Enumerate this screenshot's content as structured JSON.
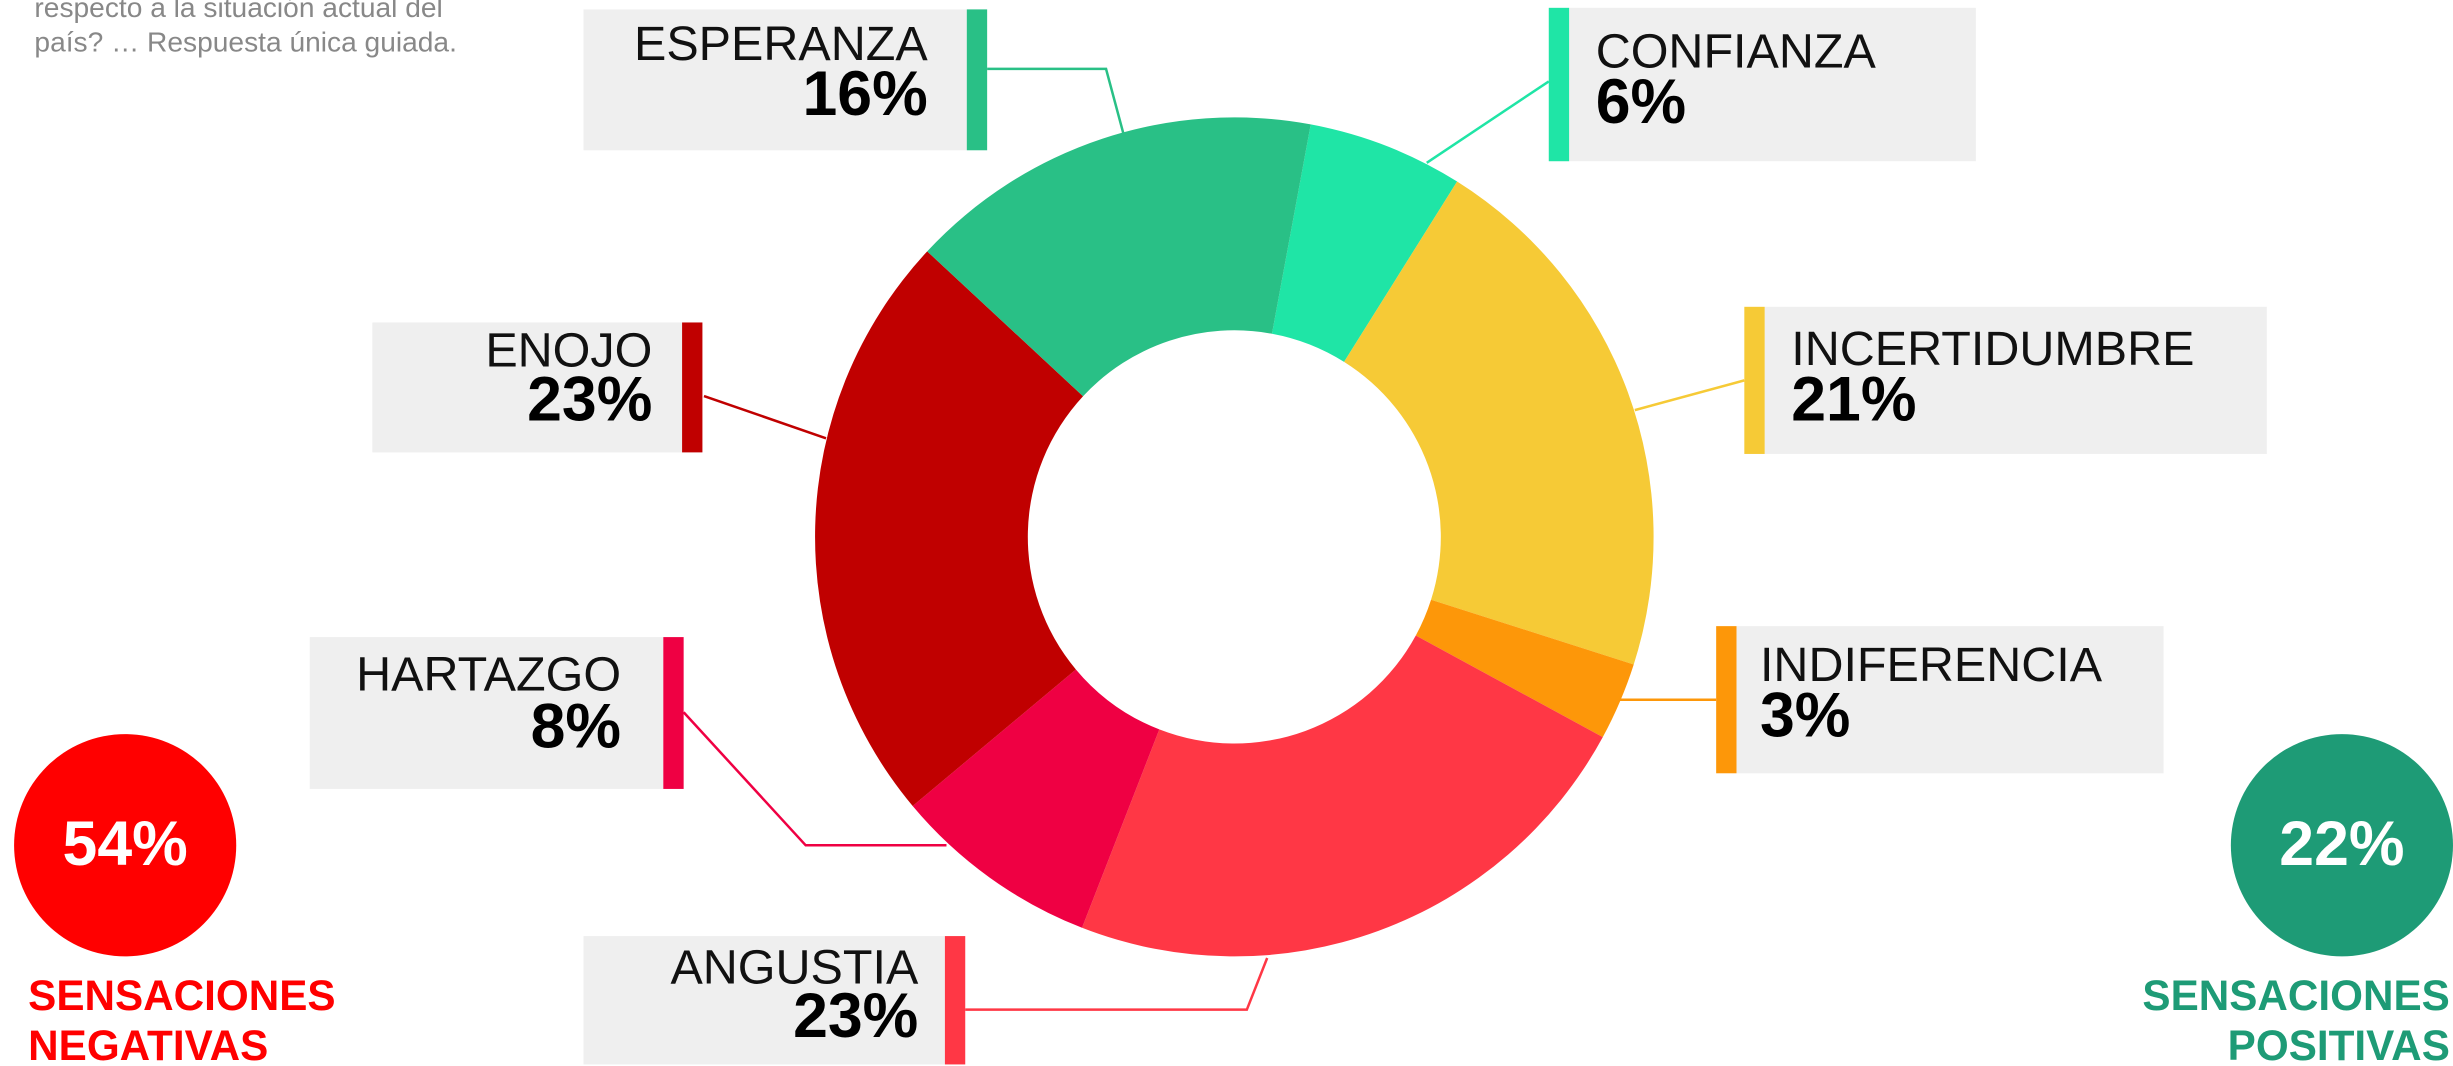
{
  "chart_data": {
    "type": "donut",
    "subtitle_lines": [
      "respecto a la situación actual del",
      "país? … Respuesta única guiada."
    ],
    "categories": [
      "CONFIANZA",
      "INCERTIDUMBRE",
      "INDIFERENCIA",
      "ANGUSTIA",
      "HARTAZGO",
      "ENOJO",
      "ESPERANZA"
    ],
    "values": [
      6,
      21,
      3,
      23,
      8,
      23,
      16
    ],
    "value_labels": [
      "6%",
      "21%",
      "3%",
      "23%",
      "8%",
      "23%",
      "16%"
    ],
    "colors": [
      "#1fe5a6",
      "#f6ca36",
      "#fd9709",
      "#ff3745",
      "#ef0043",
      "#c00000",
      "#29c086"
    ],
    "summaries": [
      {
        "value": 54,
        "value_label": "54%",
        "name_lines": [
          "SENSACIONES",
          "NEGATIVAS"
        ],
        "color": "#ff0000"
      },
      {
        "value": 22,
        "value_label": "22%",
        "name_lines": [
          "SENSACIONES",
          "POSITIVAS"
        ],
        "color": "#1e9b76"
      }
    ]
  }
}
